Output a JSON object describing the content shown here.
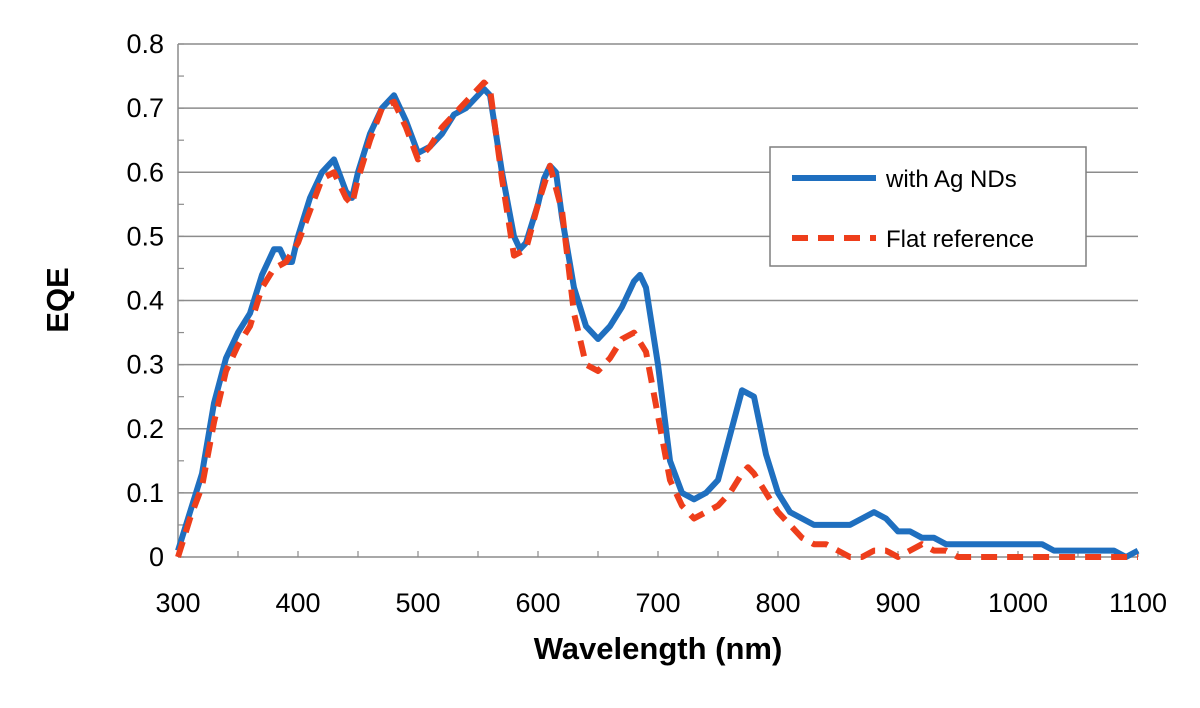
{
  "chart_data": {
    "type": "line",
    "title": "",
    "xlabel": "Wavelength (nm)",
    "ylabel": "EQE",
    "xlim": [
      300,
      1100
    ],
    "ylim": [
      0,
      0.8
    ],
    "xticks": [
      300,
      400,
      500,
      600,
      700,
      800,
      900,
      1000,
      1100
    ],
    "xtick_labels": [
      "300",
      "400",
      "500",
      "600",
      "700",
      "800",
      "900",
      "1000",
      "1100"
    ],
    "yticks": [
      0,
      0.1,
      0.2,
      0.3,
      0.4,
      0.5,
      0.6,
      0.7,
      0.8
    ],
    "ytick_labels": [
      "0",
      "0.1",
      "0.2",
      "0.3",
      "0.4",
      "0.5",
      "0.6",
      "0.7",
      "0.8"
    ],
    "grid": "horizontal",
    "legend_position": "right",
    "series": [
      {
        "name": "with Ag NDs",
        "color": "#1f6fbf",
        "style": "solid",
        "x": [
          300,
          310,
          320,
          330,
          340,
          350,
          360,
          370,
          380,
          385,
          390,
          395,
          400,
          410,
          420,
          425,
          430,
          440,
          445,
          450,
          460,
          470,
          475,
          480,
          490,
          500,
          510,
          520,
          530,
          540,
          550,
          555,
          560,
          570,
          580,
          585,
          590,
          600,
          605,
          610,
          615,
          620,
          630,
          640,
          650,
          660,
          670,
          680,
          685,
          690,
          700,
          710,
          720,
          730,
          740,
          750,
          760,
          770,
          780,
          790,
          800,
          810,
          820,
          830,
          840,
          850,
          860,
          870,
          880,
          890,
          900,
          910,
          920,
          930,
          940,
          950,
          960,
          970,
          980,
          990,
          1000,
          1010,
          1020,
          1030,
          1040,
          1050,
          1060,
          1070,
          1080,
          1090,
          1100
        ],
        "values": [
          0.01,
          0.07,
          0.13,
          0.24,
          0.31,
          0.35,
          0.38,
          0.44,
          0.48,
          0.48,
          0.46,
          0.46,
          0.5,
          0.56,
          0.6,
          0.61,
          0.62,
          0.57,
          0.56,
          0.6,
          0.66,
          0.7,
          0.71,
          0.72,
          0.68,
          0.63,
          0.64,
          0.66,
          0.69,
          0.7,
          0.72,
          0.73,
          0.72,
          0.6,
          0.5,
          0.48,
          0.49,
          0.55,
          0.59,
          0.61,
          0.6,
          0.53,
          0.42,
          0.36,
          0.34,
          0.36,
          0.39,
          0.43,
          0.44,
          0.42,
          0.3,
          0.15,
          0.1,
          0.09,
          0.1,
          0.12,
          0.19,
          0.26,
          0.25,
          0.16,
          0.1,
          0.07,
          0.06,
          0.05,
          0.05,
          0.05,
          0.05,
          0.06,
          0.07,
          0.06,
          0.04,
          0.04,
          0.03,
          0.03,
          0.02,
          0.02,
          0.02,
          0.02,
          0.02,
          0.02,
          0.02,
          0.02,
          0.02,
          0.01,
          0.01,
          0.01,
          0.01,
          0.01,
          0.01,
          0.0,
          0.01
        ]
      },
      {
        "name": "Flat reference",
        "color": "#ee3e1b",
        "style": "dashed",
        "x": [
          300,
          310,
          320,
          330,
          340,
          350,
          360,
          370,
          380,
          390,
          400,
          410,
          420,
          430,
          440,
          445,
          450,
          460,
          470,
          480,
          490,
          500,
          510,
          520,
          530,
          540,
          550,
          555,
          560,
          570,
          580,
          590,
          600,
          610,
          620,
          630,
          640,
          650,
          660,
          670,
          680,
          690,
          700,
          710,
          720,
          730,
          740,
          750,
          760,
          770,
          775,
          780,
          790,
          800,
          810,
          820,
          830,
          840,
          850,
          860,
          870,
          880,
          890,
          900,
          910,
          920,
          930,
          940,
          950,
          960,
          970,
          980,
          990,
          1000,
          1010,
          1020,
          1030,
          1040,
          1050,
          1060,
          1070,
          1080,
          1090,
          1100
        ],
        "values": [
          0.0,
          0.06,
          0.11,
          0.21,
          0.29,
          0.33,
          0.36,
          0.42,
          0.45,
          0.46,
          0.49,
          0.54,
          0.59,
          0.6,
          0.56,
          0.55,
          0.59,
          0.65,
          0.7,
          0.71,
          0.67,
          0.62,
          0.64,
          0.67,
          0.69,
          0.71,
          0.73,
          0.74,
          0.73,
          0.59,
          0.47,
          0.48,
          0.55,
          0.61,
          0.54,
          0.38,
          0.3,
          0.29,
          0.31,
          0.34,
          0.35,
          0.32,
          0.22,
          0.12,
          0.08,
          0.06,
          0.07,
          0.08,
          0.1,
          0.13,
          0.14,
          0.13,
          0.1,
          0.07,
          0.05,
          0.03,
          0.02,
          0.02,
          0.01,
          0.0,
          0.0,
          0.01,
          0.01,
          0.0,
          0.01,
          0.02,
          0.01,
          0.01,
          0.0,
          0.0,
          0.0,
          0.0,
          0.0,
          0.0,
          0.0,
          0.0,
          0.0,
          0.0,
          0.0,
          0.0,
          0.0,
          0.0,
          0.0,
          0.0
        ]
      }
    ]
  }
}
